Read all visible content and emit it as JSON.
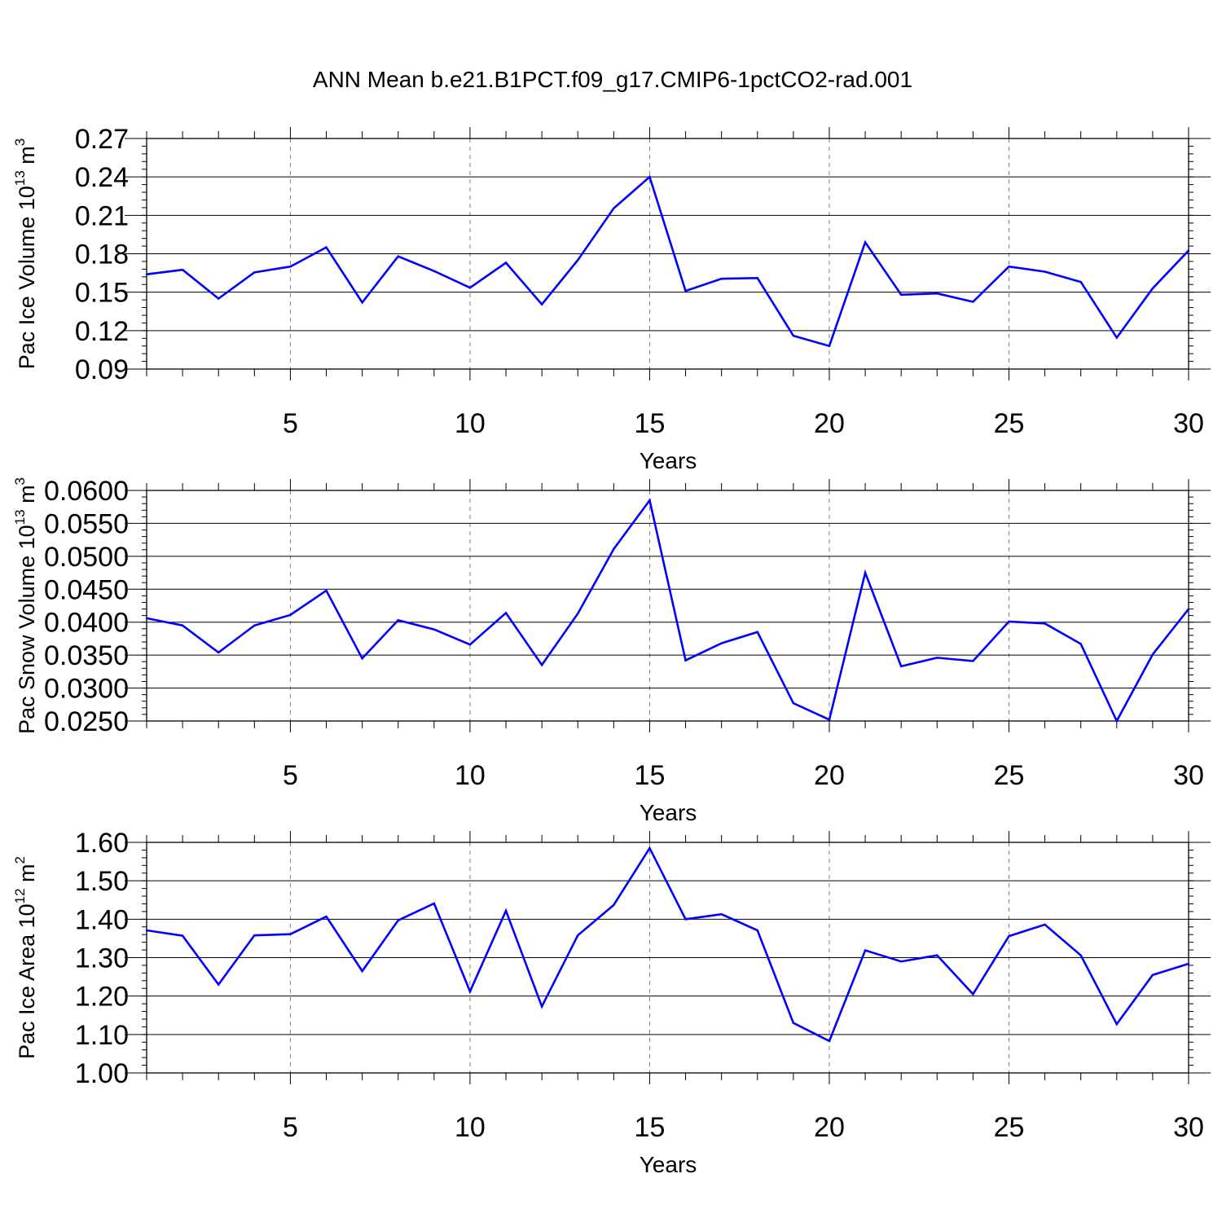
{
  "title": "ANN Mean b.e21.B1PCT.f09_g17.CMIP6-1pctCO2-rad.001",
  "colors": {
    "line": "#0000ff",
    "axis": "#000000",
    "grid": "#7f7f7f"
  },
  "chart_data": [
    {
      "type": "line",
      "title": "ANN Mean b.e21.B1PCT.f09_g17.CMIP6-1pctCO2-rad.001",
      "xlabel": "Years",
      "ylabel": {
        "text": "Pac Ice Volume 10",
        "exp": "13",
        "unit": " m",
        "unit_exp": "3"
      },
      "xlim": [
        1,
        30
      ],
      "ylim": [
        0.09,
        0.27
      ],
      "x_ticks": [
        5,
        10,
        15,
        20,
        25,
        30
      ],
      "y_ticks": [
        0.09,
        0.12,
        0.15,
        0.18,
        0.21,
        0.24,
        0.27
      ],
      "y_tick_labels": [
        "0.09",
        "0.12",
        "0.15",
        "0.18",
        "0.21",
        "0.24",
        "0.27"
      ],
      "y_minor_step": 0.006,
      "grid": "vertical dashed at major x ticks",
      "x": [
        1,
        2,
        3,
        4,
        5,
        6,
        7,
        8,
        9,
        10,
        11,
        12,
        13,
        14,
        15,
        16,
        17,
        18,
        19,
        20,
        21,
        22,
        23,
        24,
        25,
        26,
        27,
        28,
        29,
        30
      ],
      "series": [
        {
          "values": [
            0.164,
            0.1675,
            0.145,
            0.1655,
            0.17,
            0.185,
            0.142,
            0.178,
            0.1665,
            0.1535,
            0.173,
            0.1405,
            0.175,
            0.2155,
            0.24,
            0.151,
            0.1605,
            0.161,
            0.116,
            0.108,
            0.189,
            0.148,
            0.149,
            0.1425,
            0.17,
            0.166,
            0.158,
            0.1145,
            0.153,
            0.1825
          ]
        }
      ]
    },
    {
      "type": "line",
      "xlabel": "Years",
      "ylabel": {
        "text": "Pac Snow Volume 10",
        "exp": "13",
        "unit": " m",
        "unit_exp": "3"
      },
      "xlim": [
        1,
        30
      ],
      "ylim": [
        0.025,
        0.06
      ],
      "x_ticks": [
        5,
        10,
        15,
        20,
        25,
        30
      ],
      "y_ticks": [
        0.025,
        0.03,
        0.035,
        0.04,
        0.045,
        0.05,
        0.055,
        0.06
      ],
      "y_tick_labels": [
        "0.0250",
        "0.0300",
        "0.0350",
        "0.0400",
        "0.0450",
        "0.0500",
        "0.0550",
        "0.0600"
      ],
      "y_minor_step": 0.001,
      "grid": "vertical dashed at major x ticks",
      "x": [
        1,
        2,
        3,
        4,
        5,
        6,
        7,
        8,
        9,
        10,
        11,
        12,
        13,
        14,
        15,
        16,
        17,
        18,
        19,
        20,
        21,
        22,
        23,
        24,
        25,
        26,
        27,
        28,
        29,
        30
      ],
      "series": [
        {
          "values": [
            0.0406,
            0.0395,
            0.0354,
            0.0395,
            0.0411,
            0.0448,
            0.0345,
            0.0403,
            0.0389,
            0.0366,
            0.0414,
            0.0335,
            0.0413,
            0.0511,
            0.0585,
            0.0342,
            0.0368,
            0.0385,
            0.0277,
            0.0252,
            0.0475,
            0.0333,
            0.0346,
            0.0341,
            0.0401,
            0.0398,
            0.0367,
            0.025,
            0.0351,
            0.042
          ]
        }
      ]
    },
    {
      "type": "line",
      "xlabel": "Years",
      "ylabel": {
        "text": "Pac Ice Area 10",
        "exp": "12",
        "unit": " m",
        "unit_exp": "2"
      },
      "xlim": [
        1,
        30
      ],
      "ylim": [
        1.0,
        1.6
      ],
      "x_ticks": [
        5,
        10,
        15,
        20,
        25,
        30
      ],
      "y_ticks": [
        1.0,
        1.1,
        1.2,
        1.3,
        1.4,
        1.5,
        1.6
      ],
      "y_tick_labels": [
        "1.00",
        "1.10",
        "1.20",
        "1.30",
        "1.40",
        "1.50",
        "1.60"
      ],
      "y_minor_step": 0.02,
      "grid": "vertical dashed at major x ticks",
      "x": [
        1,
        2,
        3,
        4,
        5,
        6,
        7,
        8,
        9,
        10,
        11,
        12,
        13,
        14,
        15,
        16,
        17,
        18,
        19,
        20,
        21,
        22,
        23,
        24,
        25,
        26,
        27,
        28,
        29,
        30
      ],
      "series": [
        {
          "values": [
            1.371,
            1.357,
            1.23,
            1.358,
            1.361,
            1.407,
            1.265,
            1.397,
            1.441,
            1.212,
            1.422,
            1.173,
            1.358,
            1.437,
            1.585,
            1.4,
            1.413,
            1.371,
            1.13,
            1.083,
            1.319,
            1.29,
            1.306,
            1.205,
            1.356,
            1.386,
            1.306,
            1.127,
            1.255,
            1.284
          ]
        }
      ]
    }
  ]
}
